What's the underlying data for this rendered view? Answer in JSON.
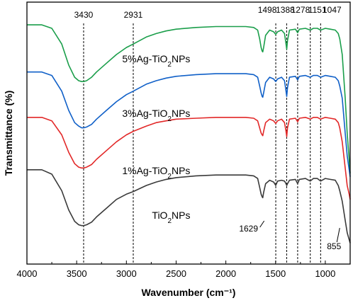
{
  "chart_data": {
    "type": "line",
    "xlabel": "Wavenumber (cm⁻¹)",
    "ylabel": "Transmittance (%)",
    "xlim": [
      4000,
      750
    ],
    "x_reversed": true,
    "x_ticks": [
      4000,
      3500,
      3000,
      2500,
      2000,
      1500,
      1000
    ],
    "y_ticks": "none",
    "grid": false,
    "legend": "inline labels",
    "peak_markers": [
      {
        "x": 3430,
        "label": "3430",
        "position": "top"
      },
      {
        "x": 2931,
        "label": "2931",
        "position": "top"
      },
      {
        "x": 1498,
        "label": "1498",
        "position": "top"
      },
      {
        "x": 1388,
        "label": "1388",
        "position": "top"
      },
      {
        "x": 1278,
        "label": "1278",
        "position": "top"
      },
      {
        "x": 1151,
        "label": "1151",
        "position": "top"
      },
      {
        "x": 1047,
        "label": "1047",
        "position": "top"
      },
      {
        "x": 1629,
        "label": "1629",
        "position": "bottom"
      },
      {
        "x": 855,
        "label": "855",
        "position": "bottom"
      }
    ],
    "series": [
      {
        "label_main": "5%Ag-TiO",
        "label_sub": "2",
        "label_tail": "NPs",
        "label_x": 2700,
        "color": "#1a9e4a",
        "x": [
          4000,
          3850,
          3750,
          3650,
          3580,
          3520,
          3480,
          3450,
          3430,
          3400,
          3350,
          3300,
          3200,
          3100,
          3000,
          2931,
          2800,
          2700,
          2600,
          2500,
          2300,
          2100,
          1900,
          1800,
          1720,
          1680,
          1660,
          1645,
          1635,
          1629,
          1620,
          1600,
          1560,
          1520,
          1498,
          1480,
          1440,
          1410,
          1395,
          1388,
          1380,
          1360,
          1300,
          1278,
          1260,
          1200,
          1151,
          1120,
          1080,
          1047,
          1000,
          950,
          900,
          870,
          855,
          830,
          800,
          780,
          760,
          750
        ],
        "y": [
          97,
          97,
          95,
          86,
          74,
          67,
          65,
          64.5,
          64.5,
          65,
          67,
          70,
          75,
          80,
          84,
          86,
          90,
          92,
          93.5,
          94.5,
          95.5,
          96,
          96,
          96,
          95.5,
          94,
          89,
          84,
          82,
          81.5,
          84,
          91,
          94,
          93,
          91.5,
          93,
          94,
          92,
          86,
          83,
          88,
          94,
          94.5,
          92.5,
          94.5,
          95,
          94,
          95,
          95,
          94,
          95,
          94.5,
          94,
          92,
          89,
          80,
          55,
          35,
          20,
          12
        ]
      },
      {
        "label_main": "3%Ag-TiO",
        "label_sub": "2",
        "label_tail": "NPs",
        "label_x": 2700,
        "color": "#1060c8",
        "x": [
          4000,
          3850,
          3750,
          3650,
          3580,
          3520,
          3480,
          3450,
          3430,
          3400,
          3350,
          3300,
          3200,
          3100,
          3000,
          2931,
          2800,
          2700,
          2600,
          2500,
          2300,
          2100,
          1900,
          1800,
          1720,
          1680,
          1660,
          1645,
          1635,
          1629,
          1620,
          1600,
          1560,
          1520,
          1498,
          1480,
          1440,
          1410,
          1395,
          1388,
          1380,
          1360,
          1300,
          1278,
          1260,
          1200,
          1151,
          1120,
          1080,
          1047,
          1000,
          950,
          900,
          870,
          855,
          830,
          800,
          780,
          760,
          750
        ],
        "y": [
          70,
          70,
          68,
          59,
          48,
          41,
          39,
          38,
          38,
          38.5,
          40,
          43,
          48,
          53,
          57,
          59,
          63,
          65,
          66.5,
          67.5,
          68.5,
          69,
          69,
          69,
          68.5,
          67,
          62,
          58,
          56,
          55.5,
          58,
          64,
          67,
          66,
          64.5,
          66,
          67,
          65,
          59,
          56,
          61,
          67,
          67.5,
          65.5,
          67.5,
          68,
          67,
          68,
          68,
          67,
          68,
          67.5,
          67,
          65,
          62,
          55,
          35,
          22,
          14,
          10
        ]
      },
      {
        "label_main": "1%Ag-TiO",
        "label_sub": "2",
        "label_tail": "NPs",
        "label_x": 2700,
        "color": "#e22828",
        "x": [
          4000,
          3850,
          3750,
          3650,
          3580,
          3520,
          3480,
          3450,
          3430,
          3400,
          3350,
          3300,
          3200,
          3100,
          3000,
          2931,
          2800,
          2700,
          2600,
          2500,
          2300,
          2100,
          1900,
          1800,
          1720,
          1680,
          1660,
          1645,
          1635,
          1629,
          1620,
          1600,
          1560,
          1520,
          1498,
          1480,
          1440,
          1410,
          1395,
          1388,
          1380,
          1360,
          1300,
          1278,
          1260,
          1200,
          1151,
          1120,
          1080,
          1047,
          1000,
          950,
          900,
          870,
          855,
          830,
          800,
          780,
          760,
          750
        ],
        "y": [
          44,
          44,
          42,
          34,
          24,
          17.5,
          15.5,
          15,
          15,
          15.5,
          17,
          20,
          25,
          30,
          34,
          36,
          39,
          41,
          42,
          43,
          43.5,
          44,
          44,
          44,
          43.5,
          42,
          38,
          35,
          34,
          33.5,
          36,
          41,
          43,
          42,
          40.5,
          42,
          43,
          41,
          36,
          33,
          38,
          43,
          43.5,
          41.5,
          43.5,
          44,
          43,
          44,
          44,
          43,
          44,
          43.5,
          43,
          41,
          38,
          30,
          15,
          5,
          0,
          -3
        ]
      },
      {
        "label_main": "TiO",
        "label_sub": "2",
        "label_tail": "NPs",
        "label_x": 2550,
        "color": "#3a3a3a",
        "x": [
          4000,
          3850,
          3750,
          3650,
          3580,
          3520,
          3480,
          3450,
          3430,
          3400,
          3350,
          3300,
          3200,
          3100,
          3000,
          2931,
          2800,
          2700,
          2600,
          2500,
          2300,
          2100,
          1900,
          1800,
          1720,
          1680,
          1660,
          1645,
          1635,
          1629,
          1620,
          1600,
          1560,
          1520,
          1498,
          1480,
          1440,
          1410,
          1395,
          1388,
          1380,
          1360,
          1300,
          1278,
          1260,
          1200,
          1151,
          1120,
          1080,
          1047,
          1000,
          950,
          900,
          870,
          855,
          830,
          800,
          780,
          760,
          750
        ],
        "y": [
          14,
          14,
          11.5,
          2,
          -9,
          -15.5,
          -17.5,
          -18,
          -18,
          -17.5,
          -16,
          -13,
          -8,
          -3,
          0,
          1.5,
          5,
          7,
          8.5,
          9.5,
          10.5,
          11,
          11,
          11,
          10.5,
          9,
          4,
          0,
          -1.5,
          -2,
          1,
          6,
          8,
          7,
          5,
          7.5,
          8,
          7.5,
          6,
          5,
          6,
          8,
          8.5,
          6,
          8.5,
          9,
          7.5,
          9,
          9,
          7.5,
          9,
          8.5,
          8,
          5,
          2,
          -4,
          -15,
          -22,
          -26,
          -28
        ]
      }
    ]
  }
}
